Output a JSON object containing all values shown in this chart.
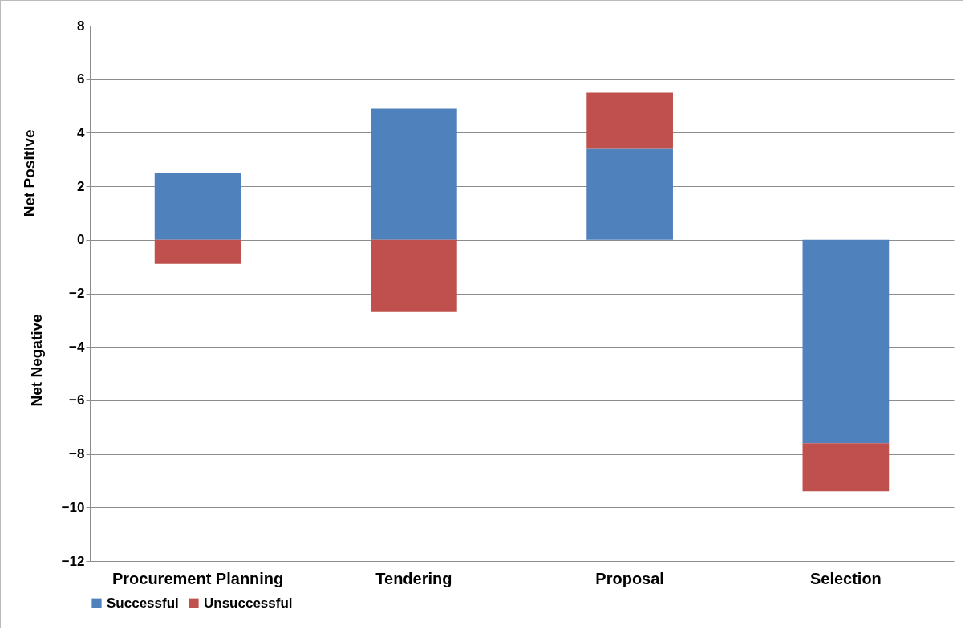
{
  "chart_data": {
    "type": "bar",
    "stacked": true,
    "ylabel": "Net Positive",
    "annotations": [
      "Net Negative"
    ],
    "categories": [
      "Procurement Planning",
      "Tendering",
      "Proposal",
      "Selection"
    ],
    "series": [
      {
        "name": "Successful",
        "color": "#4f81bd",
        "values": [
          2.5,
          4.9,
          3.4,
          -7.6
        ]
      },
      {
        "name": "Unsuccessful",
        "color": "#c0504d",
        "values": [
          -0.9,
          -2.7,
          2.1,
          -1.8
        ]
      }
    ],
    "ylim": [
      -12,
      8
    ],
    "yticks": [
      -12,
      -10,
      -8,
      -6,
      -4,
      -2,
      0,
      2,
      4,
      6,
      8
    ],
    "grid": "y",
    "legend": "bottom"
  }
}
